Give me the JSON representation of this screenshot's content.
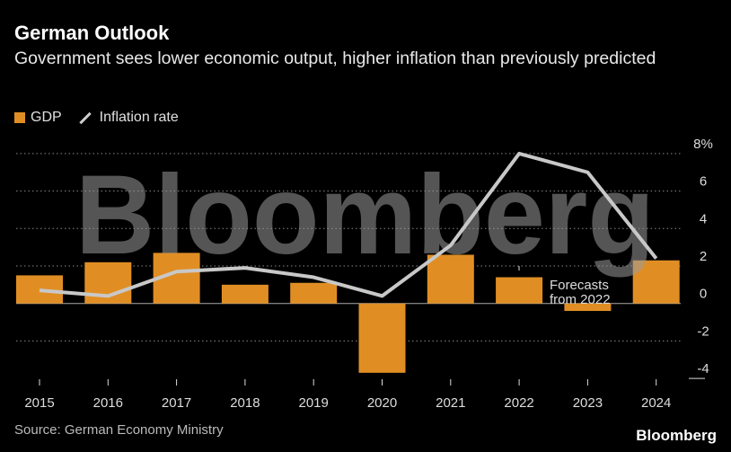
{
  "title": "German Outlook",
  "subtitle": "Government sees lower economic output, higher inflation than previously predicted",
  "source": "Source: German Economy Ministry",
  "logo": "Bloomberg",
  "watermark": "Bloomberg",
  "colors": {
    "gdp": "#e08e24",
    "inflation": "#c8c8c8",
    "background": "#000000"
  },
  "chart_data": {
    "type": "bar+line",
    "categories": [
      "2015",
      "2016",
      "2017",
      "2018",
      "2019",
      "2020",
      "2021",
      "2022",
      "2023",
      "2024"
    ],
    "series": [
      {
        "name": "GDP",
        "type": "bar",
        "values": [
          1.5,
          2.2,
          2.7,
          1.0,
          1.1,
          -3.7,
          2.6,
          1.4,
          -0.4,
          2.3
        ]
      },
      {
        "name": "Inflation rate",
        "type": "line",
        "values": [
          0.7,
          0.4,
          1.7,
          1.9,
          1.4,
          0.4,
          3.1,
          8.0,
          7.0,
          2.4
        ]
      }
    ],
    "ylim": [
      -4,
      8
    ],
    "yticks": [
      "8%",
      "6",
      "4",
      "2",
      "0",
      "-2",
      "-4"
    ],
    "ytick_values": [
      8,
      6,
      4,
      2,
      0,
      -2,
      -4
    ],
    "grid": true,
    "legend": "top-left",
    "annotation": {
      "text_line1": "Forecasts",
      "text_line2": "from 2022",
      "at": "2022"
    }
  }
}
